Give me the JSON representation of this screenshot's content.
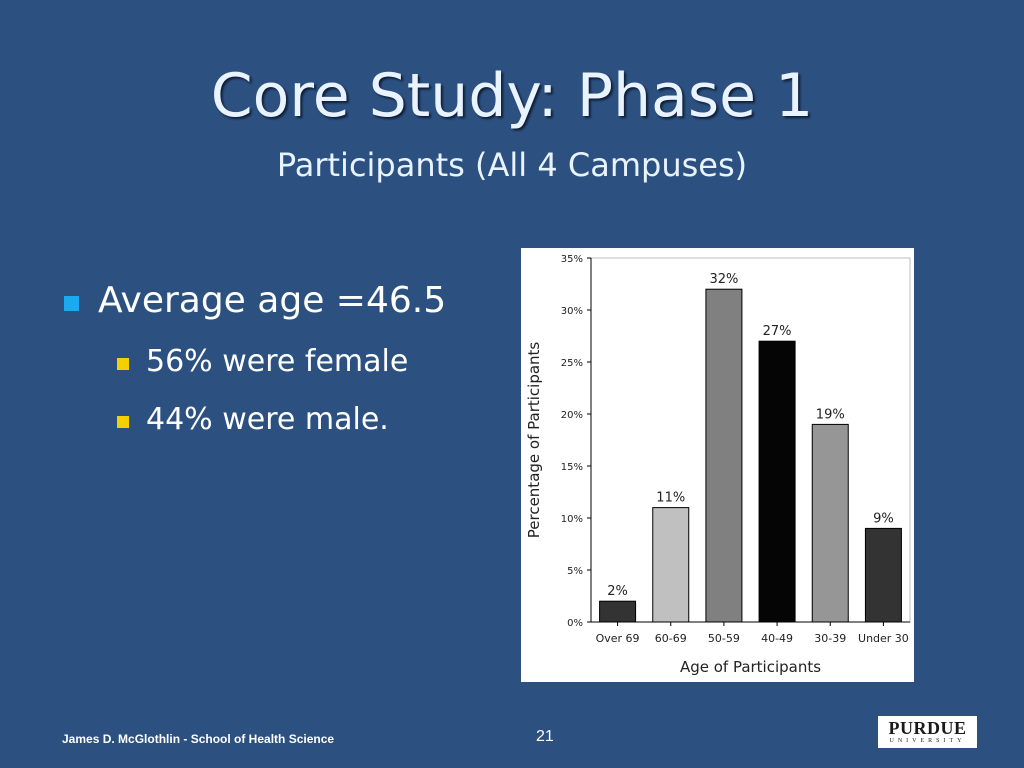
{
  "slide": {
    "title": "Core Study: Phase 1",
    "subtitle": "Participants (All 4 Campuses)",
    "bullet_main": "Average age =46.5",
    "sub_bullets": [
      "56% were female",
      "44% were male."
    ],
    "footer": "James D. McGlothlin - School of Health Science",
    "page_number": "21",
    "logo_text": "PURDUE",
    "logo_subtext": "UNIVERSITY"
  },
  "colors": {
    "background": "#2c5180",
    "bullet_level1": "#19aaf0",
    "bullet_level2": "#f4d000"
  },
  "chart_data": {
    "type": "bar",
    "title": "",
    "xlabel": "Age of Participants",
    "ylabel": "Percentage of Participants",
    "categories": [
      "Over 69",
      "60-69",
      "50-59",
      "40-49",
      "30-39",
      "Under 30"
    ],
    "values": [
      2,
      11,
      32,
      27,
      19,
      9
    ],
    "data_labels": [
      "2%",
      "11%",
      "32%",
      "27%",
      "19%",
      "9%"
    ],
    "bar_colors": [
      "#333333",
      "#c0c0c0",
      "#808080",
      "#050505",
      "#969696",
      "#333333"
    ],
    "ylim": [
      0,
      35
    ],
    "yticks": [
      0,
      5,
      10,
      15,
      20,
      25,
      30,
      35
    ],
    "ytick_labels": [
      "0%",
      "5%",
      "10%",
      "15%",
      "20%",
      "25%",
      "30%",
      "35%"
    ],
    "grid": false,
    "legend": "none"
  }
}
